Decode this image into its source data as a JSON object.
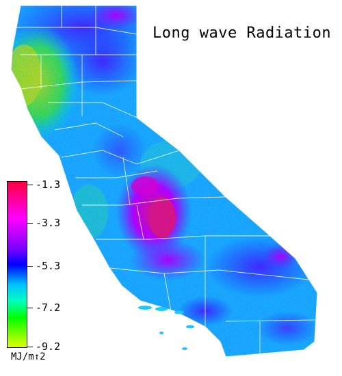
{
  "map": {
    "title": "Long wave Radiation",
    "region": "California"
  },
  "legend": {
    "ticks": [
      "-1.3",
      "-3.3",
      "-5.3",
      "-7.2",
      "-9.2"
    ],
    "unit": "MJ/m↑2",
    "colors": [
      "#ff0040",
      "#ff00ff",
      "#8000ff",
      "#0000ff",
      "#00c0ff",
      "#00ffc0",
      "#00ff00",
      "#e0ff00"
    ]
  }
}
